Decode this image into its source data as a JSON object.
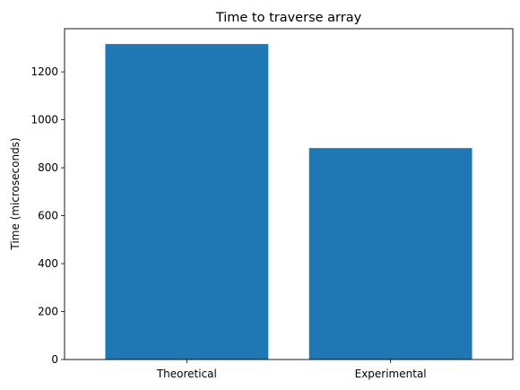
{
  "chart_data": {
    "type": "bar",
    "title": "Time to traverse array",
    "xlabel": "",
    "ylabel": "Time (microseconds)",
    "categories": [
      "Theoretical",
      "Experimental"
    ],
    "values": [
      1316,
      882
    ],
    "ylim": [
      0,
      1380
    ],
    "yticks": [
      0,
      200,
      400,
      600,
      800,
      1000,
      1200
    ],
    "bar_color": "#1f77b4",
    "grid": false,
    "legend": "none"
  }
}
